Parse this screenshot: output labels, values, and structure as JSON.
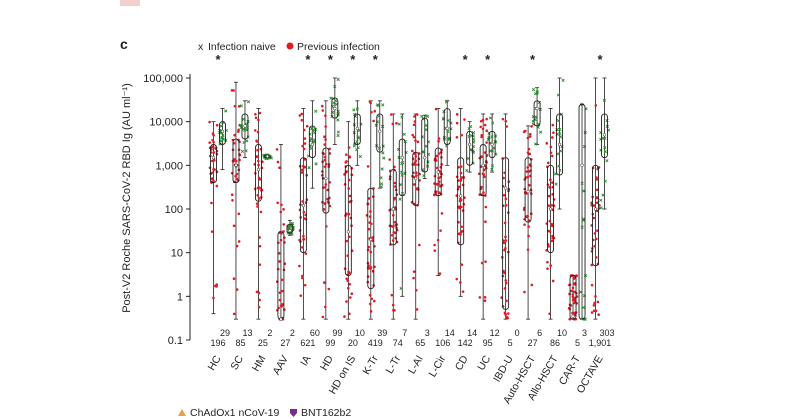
{
  "panel_letter": "c",
  "bottom_panel": {
    "legend": [
      {
        "label": "ChAdOx1 nCoV-19",
        "marker": "triangle",
        "color": "#e8a33d"
      },
      {
        "label": "BNT162b2",
        "marker": "shield",
        "color": "#7b2d8e"
      }
    ]
  },
  "chart_data": {
    "type": "box-strip",
    "title": "",
    "xlabel": "",
    "ylabel": "Post-V2 Roche SARS-CoV-2 RBD Ig (AU ml⁻¹)",
    "y_scale": "log10",
    "ylim": [
      0.1,
      100000
    ],
    "yticks": [
      {
        "value": 0.1,
        "label": "0.1"
      },
      {
        "value": 1,
        "label": "1"
      },
      {
        "value": 10,
        "label": "10"
      },
      {
        "value": 100,
        "label": "100"
      },
      {
        "value": 1000,
        "label": "1,000"
      },
      {
        "value": 10000,
        "label": "10,000"
      },
      {
        "value": 100000,
        "label": "100,000"
      }
    ],
    "legend": [
      {
        "key": "naive",
        "label": "Infection naive",
        "marker": "x",
        "color": "#2e8b2e"
      },
      {
        "key": "prev",
        "label": "Previous infection",
        "marker": "dot",
        "color": "#e01b24"
      }
    ],
    "colors": {
      "naive": "#2e8b2e",
      "prev": "#e01b24",
      "star": "#231f20"
    },
    "groups": [
      {
        "name": "HC",
        "star": true,
        "n_naive": "29",
        "n_prev": "196",
        "prev": {
          "min": 0.4,
          "q1": 400,
          "median": 1500,
          "q3": 3000,
          "max": 10000
        },
        "naive": {
          "min": 800,
          "q1": 3000,
          "median": 6000,
          "q3": 10000,
          "max": 20000
        }
      },
      {
        "name": "SC",
        "star": false,
        "n_naive": "13",
        "n_prev": "85",
        "prev": {
          "min": 0.3,
          "q1": 400,
          "median": 1000,
          "q3": 4000,
          "max": 80000
        },
        "naive": {
          "min": 1500,
          "q1": 4000,
          "median": 8000,
          "q3": 15000,
          "max": 30000
        }
      },
      {
        "name": "HM",
        "star": false,
        "n_naive": "2",
        "n_prev": "25",
        "prev": {
          "min": 0.3,
          "q1": 150,
          "median": 800,
          "q3": 3000,
          "max": 20000
        },
        "naive": {
          "min": 1400,
          "q1": 1500,
          "median": 1600,
          "q3": 1700,
          "max": 1800
        }
      },
      {
        "name": "AAV",
        "star": false,
        "n_naive": "2",
        "n_prev": "27",
        "prev": {
          "min": 0.3,
          "q1": 0.3,
          "median": 0.3,
          "q3": 30,
          "max": 3000
        },
        "naive": {
          "min": 25,
          "q1": 28,
          "median": 32,
          "q3": 45,
          "max": 55
        }
      },
      {
        "name": "IA",
        "star": true,
        "n_naive": "60",
        "n_prev": "621",
        "prev": {
          "min": 0.3,
          "q1": 10,
          "median": 120,
          "q3": 1500,
          "max": 20000
        },
        "naive": {
          "min": 300,
          "q1": 1500,
          "median": 3000,
          "q3": 8000,
          "max": 30000
        }
      },
      {
        "name": "HD",
        "star": true,
        "n_naive": "99",
        "n_prev": "99",
        "prev": {
          "min": 0.3,
          "q1": 80,
          "median": 500,
          "q3": 2500,
          "max": 30000
        },
        "naive": {
          "min": 3000,
          "q1": 12000,
          "median": 20000,
          "q3": 35000,
          "max": 100000
        }
      },
      {
        "name": "HD on IS",
        "star": true,
        "n_naive": "10",
        "n_prev": "20",
        "prev": {
          "min": 0.3,
          "q1": 3,
          "median": 30,
          "q3": 1000,
          "max": 10000
        },
        "naive": {
          "min": 1000,
          "q1": 3000,
          "median": 7000,
          "q3": 15000,
          "max": 30000
        }
      },
      {
        "name": "K-Tr",
        "star": true,
        "n_naive": "39",
        "n_prev": "419",
        "prev": {
          "min": 0.3,
          "q1": 1.5,
          "median": 20,
          "q3": 300,
          "max": 30000
        },
        "naive": {
          "min": 300,
          "q1": 2000,
          "median": 6000,
          "q3": 15000,
          "max": 30000
        }
      },
      {
        "name": "L-Tr",
        "star": false,
        "n_naive": "7",
        "n_prev": "74",
        "prev": {
          "min": 0.3,
          "q1": 15,
          "median": 100,
          "q3": 800,
          "max": 15000
        },
        "naive": {
          "min": 1,
          "q1": 200,
          "median": 1500,
          "q3": 4000,
          "max": 15000
        }
      },
      {
        "name": "L-AI",
        "star": false,
        "n_naive": "3",
        "n_prev": "65",
        "prev": {
          "min": 0.3,
          "q1": 120,
          "median": 500,
          "q3": 2000,
          "max": 15000
        },
        "naive": {
          "min": 500,
          "q1": 700,
          "median": 1500,
          "q3": 12000,
          "max": 14000
        }
      },
      {
        "name": "L-Cir",
        "star": false,
        "n_naive": "14",
        "n_prev": "106",
        "prev": {
          "min": 3,
          "q1": 200,
          "median": 700,
          "q3": 2500,
          "max": 20000
        },
        "naive": {
          "min": 1000,
          "q1": 3000,
          "median": 7000,
          "q3": 20000,
          "max": 30000
        }
      },
      {
        "name": "CD",
        "star": true,
        "n_naive": "14",
        "n_prev": "142",
        "prev": {
          "min": 1,
          "q1": 15,
          "median": 200,
          "q3": 1500,
          "max": 20000
        },
        "naive": {
          "min": 700,
          "q1": 1000,
          "median": 3000,
          "q3": 6000,
          "max": 10000
        }
      },
      {
        "name": "UC",
        "star": true,
        "n_naive": "12",
        "n_prev": "95",
        "prev": {
          "min": 0.3,
          "q1": 200,
          "median": 1000,
          "q3": 3000,
          "max": 15000
        },
        "naive": {
          "min": 700,
          "q1": 1500,
          "median": 3000,
          "q3": 6000,
          "max": 15000
        }
      },
      {
        "name": "IBD-U",
        "star": false,
        "n_naive": "0",
        "n_prev": "5",
        "prev": {
          "min": 0.3,
          "q1": 0.5,
          "median": 300,
          "q3": 1500,
          "max": 15000
        },
        "naive": null
      },
      {
        "name": "Auto-HSCT",
        "star": true,
        "n_naive": "6",
        "n_prev": "27",
        "prev": {
          "min": 0.3,
          "q1": 50,
          "median": 250,
          "q3": 1500,
          "max": 8000
        },
        "naive": {
          "min": 3000,
          "q1": 8000,
          "median": 20000,
          "q3": 30000,
          "max": 60000
        }
      },
      {
        "name": "Allo-HSCT",
        "star": false,
        "n_naive": "10",
        "n_prev": "86",
        "prev": {
          "min": 0.3,
          "q1": 10,
          "median": 100,
          "q3": 1000,
          "max": 20000
        },
        "naive": {
          "min": 100,
          "q1": 600,
          "median": 3000,
          "q3": 15000,
          "max": 100000
        }
      },
      {
        "name": "CAR-T",
        "star": false,
        "n_naive": "3",
        "n_prev": "5",
        "prev": {
          "min": 0.3,
          "q1": 0.3,
          "median": 0.35,
          "q3": 3,
          "max": 3
        },
        "naive": {
          "min": 0.3,
          "q1": 0.3,
          "median": 1000,
          "q3": 25000,
          "max": 25000
        }
      },
      {
        "name": "OCTAVE",
        "star": true,
        "n_naive": "303",
        "n_prev": "1,901",
        "prev": {
          "min": 0.3,
          "q1": 5,
          "median": 100,
          "q3": 1000,
          "max": 100000
        },
        "naive": {
          "min": 100,
          "q1": 1500,
          "median": 5000,
          "q3": 15000,
          "max": 100000
        }
      }
    ]
  }
}
